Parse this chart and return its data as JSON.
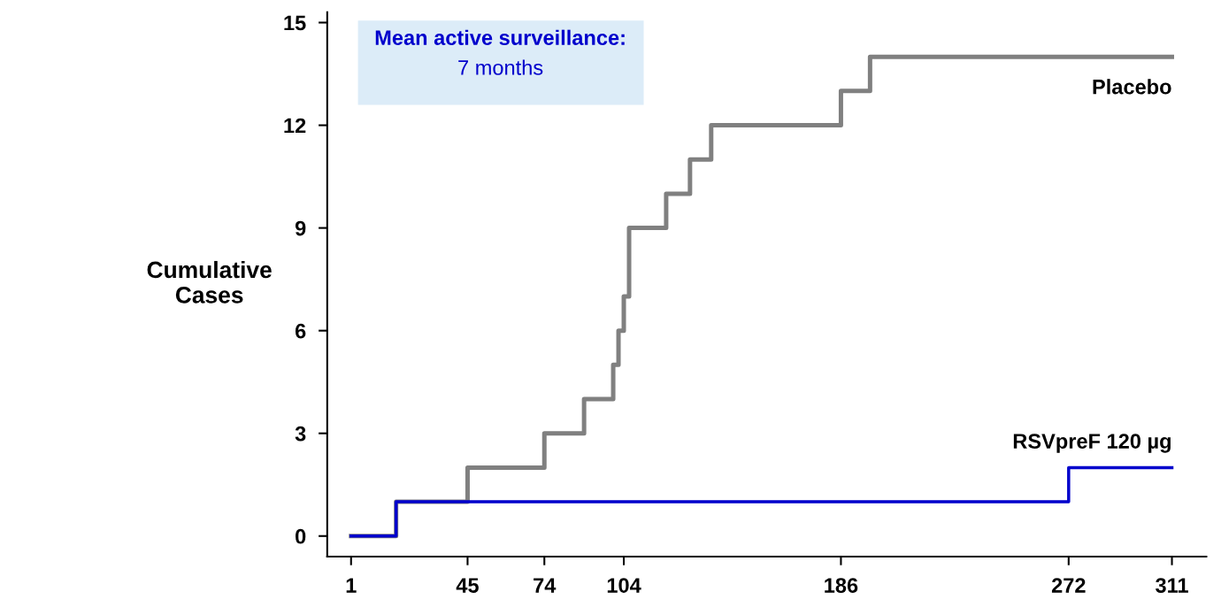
{
  "chart_data": {
    "type": "step",
    "ylabel": "Cumulative\nCases",
    "annotations": [
      "Mean active surveillance:",
      "7 months"
    ],
    "series": [
      {
        "name": "Placebo",
        "color": "#808080",
        "x": [
          1,
          18,
          45,
          74,
          89,
          100,
          102,
          104,
          106,
          120,
          129,
          137,
          186,
          197,
          311
        ],
        "values": [
          0,
          1,
          2,
          3,
          4,
          5,
          6,
          7,
          9,
          10,
          11,
          12,
          13,
          14,
          14
        ]
      },
      {
        "name": "RSVpreF 120 µg",
        "color": "#0000cc",
        "x": [
          1,
          18,
          272,
          311
        ],
        "values": [
          0,
          1,
          2,
          2
        ]
      }
    ],
    "xlim": [
      -8,
      324
    ],
    "ylim": [
      -0.6,
      15.3
    ],
    "xticks": [
      1,
      45,
      74,
      104,
      186,
      272,
      311
    ],
    "yticks": [
      0,
      3,
      6,
      9,
      12,
      15
    ],
    "grid": false,
    "legend": false,
    "marker": "none",
    "line_style": "solid"
  }
}
